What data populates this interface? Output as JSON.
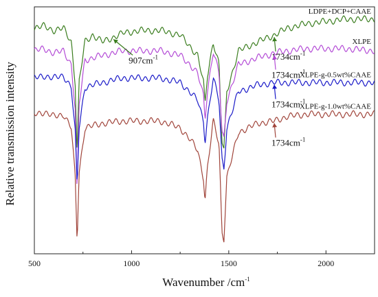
{
  "chart_data": {
    "type": "line",
    "title": "",
    "xlabel": "Wavenumber /cm",
    "xlabel_sup": "-1",
    "ylabel": "Relative transmission intensity",
    "xlim": [
      500,
      2250
    ],
    "x_ticks": [
      500,
      1000,
      1500,
      2000
    ],
    "grid": false,
    "legend": "inline labels at right",
    "series": [
      {
        "name": "LDPE+DCP+CAAE",
        "color": "#3a7d1e",
        "points": [
          [
            500,
            0.96
          ],
          [
            550,
            0.97
          ],
          [
            600,
            0.95
          ],
          [
            650,
            0.96
          ],
          [
            690,
            0.9
          ],
          [
            710,
            0.72
          ],
          [
            720,
            0.4
          ],
          [
            730,
            0.72
          ],
          [
            760,
            0.9
          ],
          [
            800,
            0.93
          ],
          [
            850,
            0.9
          ],
          [
            907,
            0.92
          ],
          [
            960,
            0.94
          ],
          [
            1050,
            0.95
          ],
          [
            1150,
            0.95
          ],
          [
            1250,
            0.93
          ],
          [
            1300,
            0.88
          ],
          [
            1340,
            0.84
          ],
          [
            1370,
            0.72
          ],
          [
            1378,
            0.62
          ],
          [
            1390,
            0.75
          ],
          [
            1420,
            0.9
          ],
          [
            1450,
            0.8
          ],
          [
            1465,
            0.46
          ],
          [
            1475,
            0.42
          ],
          [
            1490,
            0.68
          ],
          [
            1550,
            0.86
          ],
          [
            1650,
            0.9
          ],
          [
            1734,
            0.93
          ],
          [
            1800,
            0.96
          ],
          [
            1900,
            0.98
          ],
          [
            2000,
            0.99
          ],
          [
            2100,
            1.0
          ],
          [
            2250,
            1.0
          ]
        ]
      },
      {
        "name": "XLPE",
        "color": "#b34ad6",
        "points": [
          [
            500,
            0.86
          ],
          [
            550,
            0.87
          ],
          [
            600,
            0.85
          ],
          [
            650,
            0.86
          ],
          [
            690,
            0.8
          ],
          [
            710,
            0.6
          ],
          [
            720,
            0.22
          ],
          [
            730,
            0.62
          ],
          [
            760,
            0.82
          ],
          [
            850,
            0.84
          ],
          [
            950,
            0.86
          ],
          [
            1050,
            0.86
          ],
          [
            1150,
            0.86
          ],
          [
            1250,
            0.84
          ],
          [
            1300,
            0.8
          ],
          [
            1340,
            0.76
          ],
          [
            1370,
            0.66
          ],
          [
            1378,
            0.56
          ],
          [
            1390,
            0.68
          ],
          [
            1420,
            0.86
          ],
          [
            1450,
            0.76
          ],
          [
            1465,
            0.5
          ],
          [
            1475,
            0.47
          ],
          [
            1490,
            0.64
          ],
          [
            1550,
            0.8
          ],
          [
            1650,
            0.83
          ],
          [
            1734,
            0.85
          ],
          [
            1800,
            0.86
          ],
          [
            1900,
            0.87
          ],
          [
            2000,
            0.87
          ],
          [
            2100,
            0.87
          ],
          [
            2250,
            0.86
          ]
        ]
      },
      {
        "name": "XLPE-g-0.5wt%CAAE",
        "color": "#1a1ac8",
        "points": [
          [
            500,
            0.74
          ],
          [
            550,
            0.75
          ],
          [
            600,
            0.74
          ],
          [
            650,
            0.75
          ],
          [
            690,
            0.7
          ],
          [
            710,
            0.5
          ],
          [
            720,
            0.26
          ],
          [
            730,
            0.52
          ],
          [
            760,
            0.7
          ],
          [
            850,
            0.72
          ],
          [
            950,
            0.74
          ],
          [
            1050,
            0.74
          ],
          [
            1150,
            0.74
          ],
          [
            1250,
            0.72
          ],
          [
            1300,
            0.68
          ],
          [
            1340,
            0.64
          ],
          [
            1370,
            0.55
          ],
          [
            1378,
            0.46
          ],
          [
            1390,
            0.56
          ],
          [
            1420,
            0.74
          ],
          [
            1450,
            0.64
          ],
          [
            1465,
            0.38
          ],
          [
            1475,
            0.34
          ],
          [
            1490,
            0.52
          ],
          [
            1550,
            0.68
          ],
          [
            1650,
            0.71
          ],
          [
            1734,
            0.72
          ],
          [
            1800,
            0.72
          ],
          [
            1900,
            0.72
          ],
          [
            2000,
            0.72
          ],
          [
            2100,
            0.72
          ],
          [
            2250,
            0.72
          ]
        ]
      },
      {
        "name": "XLPE-g-1.0wt%CAAE",
        "color": "#a0443a",
        "points": [
          [
            500,
            0.58
          ],
          [
            550,
            0.59
          ],
          [
            600,
            0.57
          ],
          [
            650,
            0.58
          ],
          [
            690,
            0.52
          ],
          [
            710,
            0.3
          ],
          [
            720,
            0.02
          ],
          [
            730,
            0.32
          ],
          [
            760,
            0.52
          ],
          [
            850,
            0.54
          ],
          [
            950,
            0.55
          ],
          [
            1050,
            0.55
          ],
          [
            1150,
            0.55
          ],
          [
            1250,
            0.52
          ],
          [
            1300,
            0.47
          ],
          [
            1340,
            0.42
          ],
          [
            1370,
            0.3
          ],
          [
            1378,
            0.2
          ],
          [
            1390,
            0.34
          ],
          [
            1420,
            0.55
          ],
          [
            1450,
            0.45
          ],
          [
            1465,
            0.06
          ],
          [
            1475,
            0.03
          ],
          [
            1490,
            0.3
          ],
          [
            1550,
            0.5
          ],
          [
            1650,
            0.54
          ],
          [
            1734,
            0.55
          ],
          [
            1800,
            0.57
          ],
          [
            1900,
            0.58
          ],
          [
            2000,
            0.58
          ],
          [
            2100,
            0.58
          ],
          [
            2250,
            0.58
          ]
        ]
      }
    ],
    "annotations": [
      {
        "text": "907cm",
        "sup": "-1",
        "series": 0,
        "x": 907
      },
      {
        "text": "1734cm",
        "sup": "-1",
        "series": 0,
        "x": 1734
      },
      {
        "text": "1734cm",
        "sup": "-1",
        "series": 1,
        "x": 1734
      },
      {
        "text": "1734cm",
        "sup": "-1",
        "series": 2,
        "x": 1734
      },
      {
        "text": "1734cm",
        "sup": "-1",
        "series": 3,
        "x": 1734
      }
    ]
  }
}
